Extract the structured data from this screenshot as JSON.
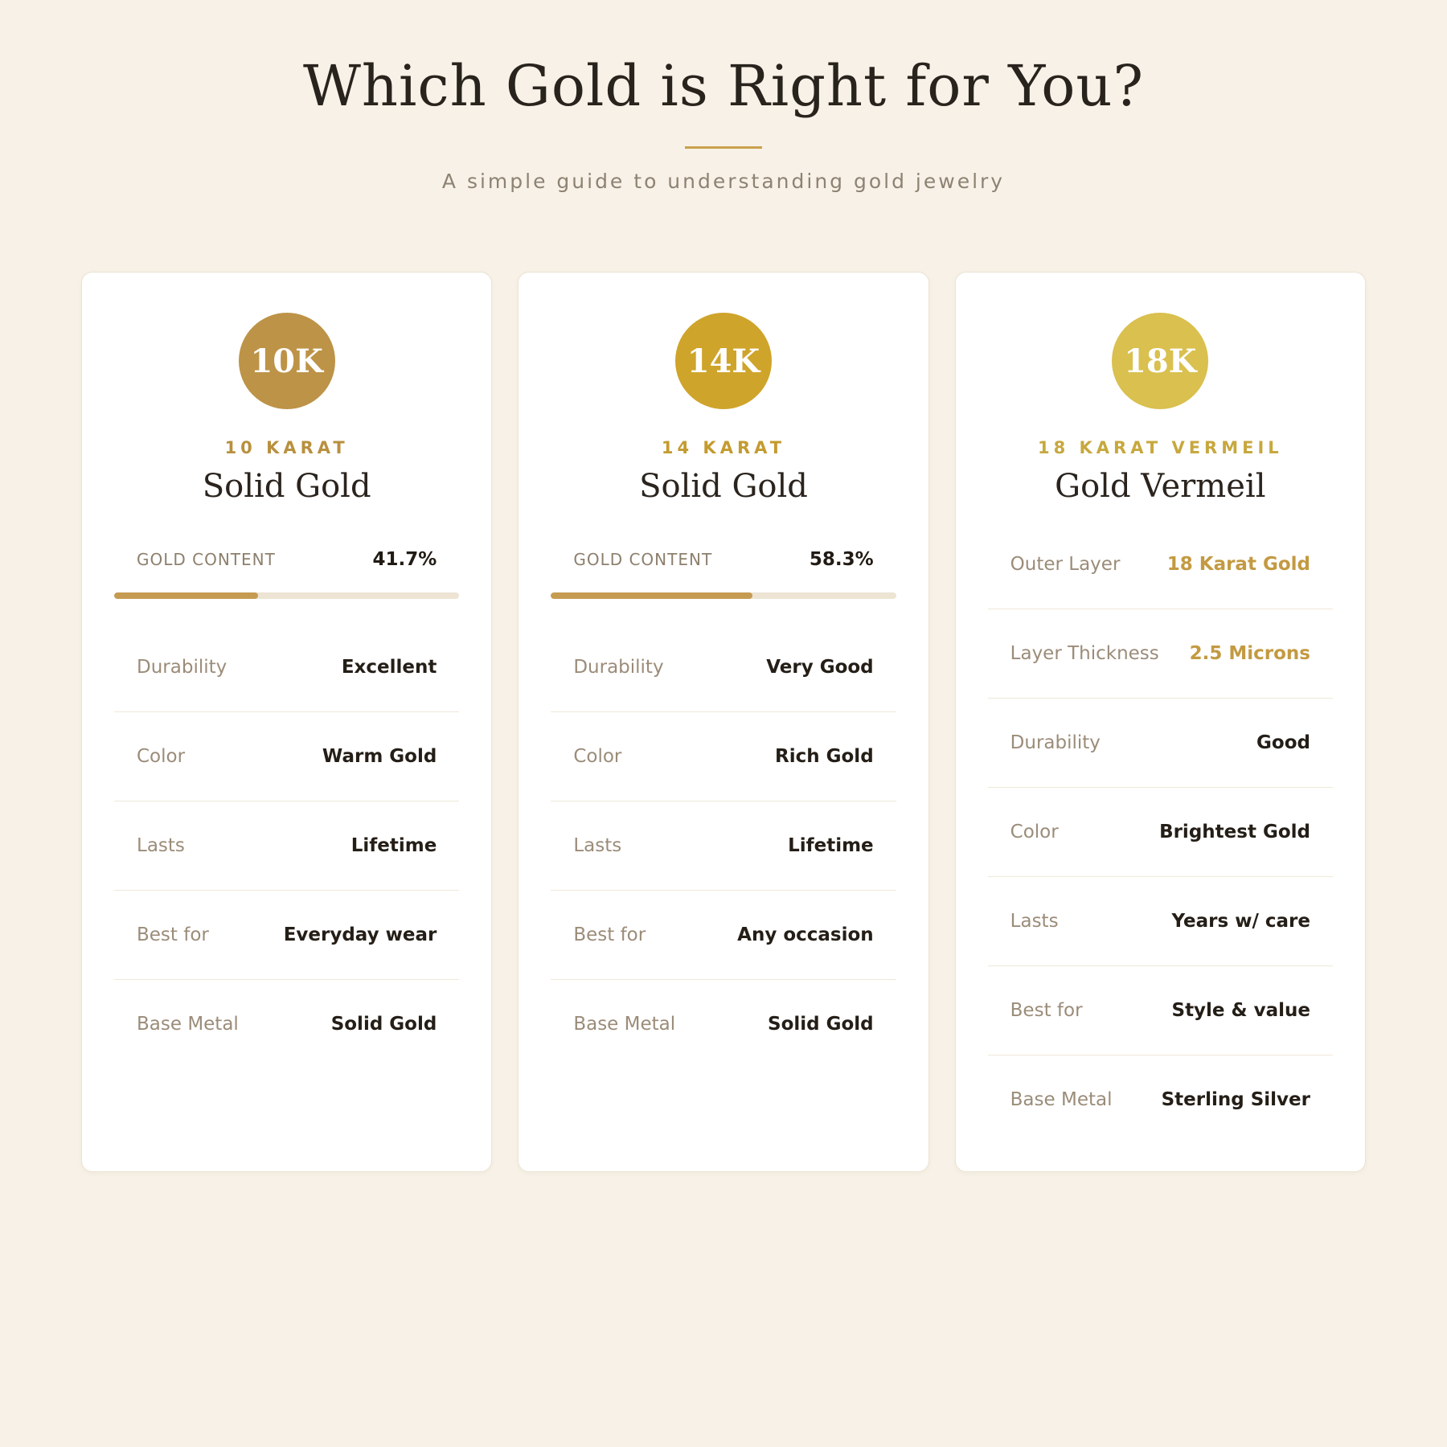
{
  "page": {
    "title": "Which Gold is Right for You?",
    "subtitle": "A simple guide to understanding gold jewelry"
  },
  "theme": {
    "background": "#f7f1e7",
    "divider_gold": "#c9a14b",
    "bar_track": "#ede4d3",
    "bar_fill": "#c59b52",
    "muted_label": "#9b8c79",
    "dark_value": "#241e17",
    "gold_value": "#c39a42"
  },
  "cards": [
    {
      "badge": "10K",
      "badge_color": "#bd9347",
      "accent_color": "#b8903e",
      "kicker": "10 KARAT",
      "title": "Solid Gold",
      "gold_content": {
        "label": "GOLD CONTENT",
        "value": "41.7%",
        "percent": 41.7
      },
      "rows": [
        {
          "label": "Durability",
          "value": "Excellent"
        },
        {
          "label": "Color",
          "value": "Warm Gold"
        },
        {
          "label": "Lasts",
          "value": "Lifetime"
        },
        {
          "label": "Best for",
          "value": "Everyday wear"
        },
        {
          "label": "Base Metal",
          "value": "Solid Gold"
        }
      ]
    },
    {
      "badge": "14K",
      "badge_color": "#cfa42b",
      "accent_color": "#c39b2f",
      "kicker": "14 KARAT",
      "title": "Solid Gold",
      "gold_content": {
        "label": "GOLD CONTENT",
        "value": "58.3%",
        "percent": 58.3
      },
      "rows": [
        {
          "label": "Durability",
          "value": "Very Good"
        },
        {
          "label": "Color",
          "value": "Rich Gold"
        },
        {
          "label": "Lasts",
          "value": "Lifetime"
        },
        {
          "label": "Best for",
          "value": "Any occasion"
        },
        {
          "label": "Base Metal",
          "value": "Solid Gold"
        }
      ]
    },
    {
      "badge": "18K",
      "badge_color": "#d9c04f",
      "accent_color": "#c7a83e",
      "kicker": "18 KARAT VERMEIL",
      "title": "Gold Vermeil",
      "rows": [
        {
          "label": "Outer Layer",
          "value": "18 Karat Gold",
          "gold": true
        },
        {
          "label": "Layer Thickness",
          "value": "2.5 Microns",
          "gold": true
        },
        {
          "label": "Durability",
          "value": "Good"
        },
        {
          "label": "Color",
          "value": "Brightest Gold"
        },
        {
          "label": "Lasts",
          "value": "Years w/ care"
        },
        {
          "label": "Best for",
          "value": "Style & value"
        },
        {
          "label": "Base Metal",
          "value": "Sterling Silver"
        }
      ]
    }
  ]
}
